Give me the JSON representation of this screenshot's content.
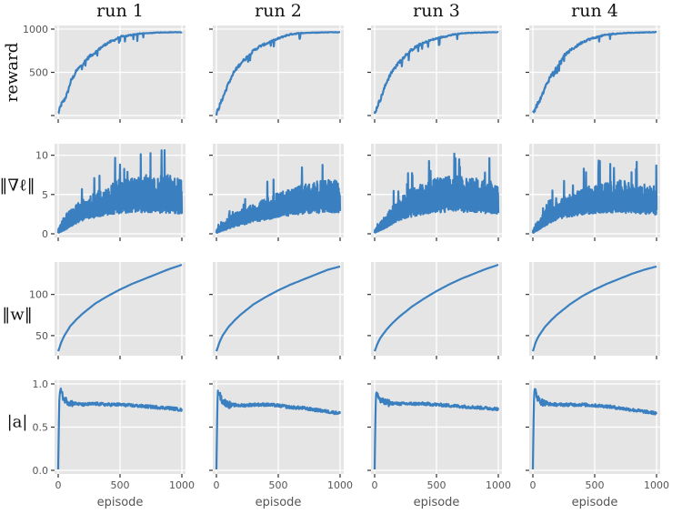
{
  "chart_data": {
    "type": "line",
    "layout": "grid 4 rows x 4 columns",
    "columns": [
      "run 1",
      "run 2",
      "run 3",
      "run 4"
    ],
    "xlabel": "episode",
    "x_ticks": [
      0,
      500,
      1000
    ],
    "xlim": [
      0,
      1000
    ],
    "rows": [
      {
        "ylabel": "reward",
        "ylim": [
          0,
          1000
        ],
        "y_ticks": [
          0,
          500,
          1000
        ],
        "y_tick_labels": [
          "",
          "500",
          "1000"
        ]
      },
      {
        "ylabel": "‖∇ℓ‖",
        "ylim": [
          0,
          11
        ],
        "y_ticks": [
          0,
          5,
          10
        ],
        "y_tick_labels": [
          "0",
          "5",
          "10"
        ]
      },
      {
        "ylabel": "‖w‖",
        "ylim": [
          30,
          135
        ],
        "y_ticks": [
          50,
          100
        ],
        "y_tick_labels": [
          "50",
          "100"
        ]
      },
      {
        "ylabel": "|a|",
        "ylim": [
          0,
          1
        ],
        "y_ticks": [
          0,
          0.5,
          1.0
        ],
        "y_tick_labels": [
          "0.0",
          "0.5",
          "1.0"
        ]
      }
    ],
    "series_color": "#3a7fbf",
    "panel_background": "#e5e5e5",
    "grid": true,
    "runs": [
      {
        "reward": {
          "x": [
            0,
            25,
            50,
            75,
            100,
            150,
            200,
            250,
            300,
            350,
            400,
            450,
            500,
            550,
            600,
            650,
            700,
            750,
            800,
            850,
            900,
            950,
            1000
          ],
          "y": [
            20,
            130,
            180,
            260,
            390,
            520,
            600,
            680,
            730,
            790,
            840,
            870,
            910,
            920,
            935,
            945,
            950,
            955,
            960,
            962,
            963,
            965,
            965
          ]
        },
        "grad_norm_upper": {
          "x": [
            0,
            50,
            100,
            150,
            200,
            300,
            400,
            500,
            600,
            700,
            800,
            900,
            1000
          ],
          "y": [
            0.5,
            2.2,
            3.0,
            3.6,
            4.2,
            5.0,
            5.8,
            6.6,
            6.8,
            7.2,
            7.0,
            7.2,
            6.5
          ]
        },
        "grad_norm_lower": {
          "x": [
            0,
            50,
            100,
            150,
            200,
            300,
            400,
            500,
            600,
            700,
            800,
            900,
            1000
          ],
          "y": [
            0.1,
            0.5,
            1.0,
            1.5,
            1.9,
            2.3,
            2.6,
            2.9,
            3.0,
            3.0,
            2.9,
            2.9,
            2.8
          ]
        },
        "weight_norm": {
          "x": [
            0,
            25,
            50,
            100,
            150,
            200,
            300,
            400,
            500,
            600,
            700,
            800,
            900,
            1000
          ],
          "y": [
            31,
            42,
            50,
            62,
            70,
            77,
            89,
            98,
            106,
            113,
            119,
            125,
            131,
            136
          ]
        },
        "action_mag": {
          "x": [
            0,
            5,
            10,
            20,
            30,
            50,
            100,
            200,
            300,
            400,
            500,
            600,
            700,
            800,
            900,
            1000
          ],
          "y": [
            0.01,
            0.5,
            0.88,
            0.93,
            0.88,
            0.82,
            0.78,
            0.76,
            0.77,
            0.76,
            0.76,
            0.75,
            0.74,
            0.73,
            0.72,
            0.7
          ]
        }
      },
      {
        "reward": {
          "x": [
            0,
            25,
            50,
            75,
            100,
            150,
            200,
            250,
            300,
            350,
            400,
            450,
            500,
            550,
            600,
            650,
            700,
            750,
            800,
            850,
            900,
            950,
            1000
          ],
          "y": [
            20,
            110,
            200,
            290,
            380,
            520,
            610,
            680,
            750,
            800,
            830,
            860,
            890,
            920,
            940,
            950,
            955,
            958,
            960,
            962,
            963,
            965,
            965
          ]
        },
        "grad_norm_upper": {
          "x": [
            0,
            50,
            100,
            150,
            200,
            300,
            400,
            500,
            600,
            700,
            800,
            900,
            1000
          ],
          "y": [
            0.5,
            1.3,
            2.0,
            2.5,
            3.0,
            3.6,
            4.3,
            5.0,
            5.5,
            6.0,
            6.3,
            6.6,
            6.4
          ]
        },
        "grad_norm_lower": {
          "x": [
            0,
            50,
            100,
            150,
            200,
            300,
            400,
            500,
            600,
            700,
            800,
            900,
            1000
          ],
          "y": [
            0.1,
            0.4,
            0.7,
            1.0,
            1.2,
            1.6,
            2.0,
            2.3,
            2.6,
            2.8,
            2.9,
            3.0,
            3.0
          ]
        },
        "weight_norm": {
          "x": [
            0,
            25,
            50,
            100,
            150,
            200,
            300,
            400,
            500,
            600,
            700,
            800,
            900,
            1000
          ],
          "y": [
            31,
            42,
            50,
            61,
            69,
            76,
            88,
            97,
            105,
            112,
            118,
            124,
            130,
            134
          ]
        },
        "action_mag": {
          "x": [
            0,
            5,
            10,
            20,
            30,
            50,
            100,
            200,
            300,
            400,
            500,
            600,
            700,
            800,
            900,
            1000
          ],
          "y": [
            0.01,
            0.5,
            0.88,
            0.92,
            0.86,
            0.8,
            0.76,
            0.75,
            0.76,
            0.76,
            0.75,
            0.73,
            0.72,
            0.7,
            0.68,
            0.66
          ]
        }
      },
      {
        "reward": {
          "x": [
            0,
            25,
            50,
            75,
            100,
            150,
            200,
            250,
            300,
            350,
            400,
            450,
            500,
            550,
            600,
            650,
            700,
            750,
            800,
            850,
            900,
            950,
            1000
          ],
          "y": [
            20,
            120,
            200,
            300,
            400,
            530,
            620,
            700,
            760,
            810,
            840,
            870,
            890,
            910,
            925,
            940,
            950,
            955,
            958,
            960,
            962,
            964,
            965
          ]
        },
        "grad_norm_upper": {
          "x": [
            0,
            50,
            100,
            150,
            200,
            300,
            400,
            500,
            600,
            700,
            800,
            900,
            1000
          ],
          "y": [
            0.5,
            1.5,
            2.5,
            3.5,
            4.3,
            5.5,
            6.3,
            6.8,
            7.2,
            7.0,
            6.8,
            6.6,
            6.2
          ]
        },
        "grad_norm_lower": {
          "x": [
            0,
            50,
            100,
            150,
            200,
            300,
            400,
            500,
            600,
            700,
            800,
            900,
            1000
          ],
          "y": [
            0.1,
            0.5,
            0.9,
            1.4,
            1.9,
            2.4,
            2.8,
            3.0,
            3.1,
            3.1,
            3.0,
            2.9,
            2.8
          ]
        },
        "weight_norm": {
          "x": [
            0,
            25,
            50,
            100,
            150,
            200,
            300,
            400,
            500,
            600,
            700,
            800,
            900,
            1000
          ],
          "y": [
            31,
            41,
            48,
            58,
            66,
            73,
            85,
            95,
            104,
            112,
            119,
            125,
            131,
            136
          ]
        },
        "action_mag": {
          "x": [
            0,
            5,
            10,
            20,
            30,
            50,
            100,
            200,
            300,
            400,
            500,
            600,
            700,
            800,
            900,
            1000
          ],
          "y": [
            0.01,
            0.5,
            0.85,
            0.9,
            0.85,
            0.8,
            0.78,
            0.77,
            0.77,
            0.77,
            0.76,
            0.75,
            0.74,
            0.73,
            0.72,
            0.71
          ]
        }
      },
      {
        "reward": {
          "x": [
            0,
            25,
            50,
            75,
            100,
            150,
            200,
            250,
            300,
            350,
            400,
            450,
            500,
            550,
            600,
            650,
            700,
            750,
            800,
            850,
            900,
            950,
            1000
          ],
          "y": [
            20,
            100,
            160,
            230,
            330,
            470,
            580,
            690,
            750,
            800,
            850,
            880,
            900,
            920,
            935,
            945,
            950,
            955,
            958,
            960,
            962,
            964,
            965
          ]
        },
        "grad_norm_upper": {
          "x": [
            0,
            50,
            100,
            150,
            200,
            300,
            400,
            500,
            600,
            700,
            800,
            900,
            1000
          ],
          "y": [
            0.5,
            1.8,
            2.8,
            3.5,
            4.0,
            4.8,
            5.5,
            6.0,
            6.3,
            6.5,
            6.3,
            6.0,
            5.8
          ]
        },
        "grad_norm_lower": {
          "x": [
            0,
            50,
            100,
            150,
            200,
            300,
            400,
            500,
            600,
            700,
            800,
            900,
            1000
          ],
          "y": [
            0.1,
            0.6,
            1.1,
            1.6,
            2.0,
            2.4,
            2.7,
            2.9,
            3.0,
            3.0,
            2.9,
            2.8,
            2.7
          ]
        },
        "weight_norm": {
          "x": [
            0,
            25,
            50,
            100,
            150,
            200,
            300,
            400,
            500,
            600,
            700,
            800,
            900,
            1000
          ],
          "y": [
            31,
            43,
            50,
            61,
            69,
            76,
            88,
            98,
            106,
            113,
            119,
            125,
            130,
            134
          ]
        },
        "action_mag": {
          "x": [
            0,
            5,
            10,
            20,
            30,
            50,
            100,
            200,
            300,
            400,
            500,
            600,
            700,
            800,
            900,
            1000
          ],
          "y": [
            0.01,
            0.5,
            0.88,
            0.93,
            0.87,
            0.81,
            0.77,
            0.76,
            0.76,
            0.76,
            0.75,
            0.74,
            0.72,
            0.7,
            0.68,
            0.66
          ]
        }
      }
    ]
  }
}
